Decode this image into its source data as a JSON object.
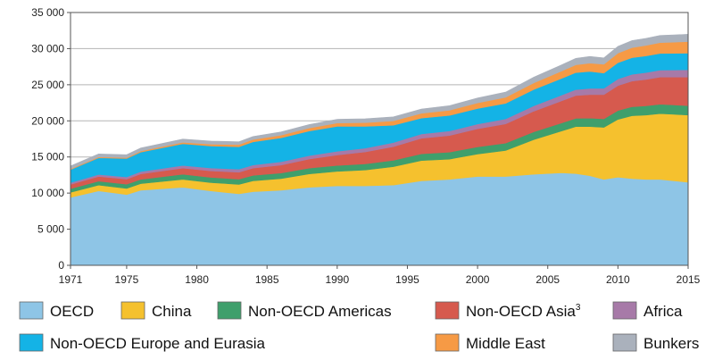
{
  "chart_data": {
    "type": "area",
    "stacked": true,
    "title": "",
    "xlabel": "",
    "ylabel": "",
    "ylim": [
      0,
      35000
    ],
    "yticks": [
      0,
      5000,
      10000,
      15000,
      20000,
      25000,
      30000,
      35000
    ],
    "ytick_labels": [
      "0",
      "5 000",
      "10 000",
      "15 000",
      "20 000",
      "25 000",
      "30 000",
      "35 000"
    ],
    "xlim": [
      1971,
      2015
    ],
    "xticks": [
      1971,
      1975,
      1980,
      1985,
      1990,
      1995,
      2000,
      2005,
      2010,
      2015
    ],
    "xtick_labels": [
      "1971",
      "1975",
      "1980",
      "1985",
      "1990",
      "1995",
      "2000",
      "2005",
      "2010",
      "2015"
    ],
    "grid": "horizontal",
    "legend_position": "bottom",
    "x": [
      1971,
      1973,
      1975,
      1976,
      1979,
      1981,
      1983,
      1984,
      1986,
      1988,
      1990,
      1992,
      1994,
      1996,
      1998,
      2000,
      2002,
      2004,
      2006,
      2007,
      2008,
      2009,
      2010,
      2011,
      2012,
      2013,
      2014,
      2015
    ],
    "series": [
      {
        "name": "OECD",
        "color": "#8ec5e6",
        "values": [
          9400,
          10300,
          9800,
          10400,
          10800,
          10300,
          9900,
          10200,
          10400,
          10800,
          11000,
          11000,
          11100,
          11700,
          11900,
          12300,
          12300,
          12600,
          12800,
          12700,
          12400,
          11900,
          12200,
          12000,
          11900,
          11900,
          11700,
          11500
        ]
      },
      {
        "name": "China",
        "color": "#f5c12e",
        "values": [
          700,
          800,
          850,
          900,
          1100,
          1150,
          1300,
          1500,
          1600,
          1850,
          2000,
          2200,
          2550,
          2800,
          2800,
          3100,
          3600,
          4800,
          5800,
          6500,
          6800,
          7200,
          8000,
          8700,
          8900,
          9100,
          9200,
          9300
        ]
      },
      {
        "name": "Non-OECD Americas",
        "color": "#3f9f6c",
        "values": [
          500,
          550,
          580,
          600,
          700,
          720,
          730,
          750,
          780,
          800,
          820,
          840,
          880,
          930,
          970,
          1000,
          1020,
          1080,
          1120,
          1150,
          1180,
          1180,
          1230,
          1250,
          1280,
          1300,
          1300,
          1300
        ]
      },
      {
        "name": "Non-OECD Asia",
        "sup": "3",
        "color": "#d65a4e",
        "values": [
          600,
          650,
          700,
          750,
          850,
          900,
          950,
          1000,
          1100,
          1250,
          1450,
          1650,
          1900,
          2150,
          2300,
          2500,
          2650,
          2850,
          3050,
          3150,
          3250,
          3350,
          3450,
          3550,
          3650,
          3750,
          3850,
          3950
        ]
      },
      {
        "name": "Africa",
        "color": "#a77aa8",
        "values": [
          250,
          280,
          300,
          320,
          380,
          400,
          430,
          440,
          460,
          490,
          520,
          540,
          560,
          600,
          630,
          660,
          700,
          750,
          810,
          830,
          860,
          880,
          920,
          940,
          960,
          980,
          1000,
          1020
        ]
      },
      {
        "name": "Non-OECD Europe and Eurasia",
        "color": "#14b3e6",
        "values": [
          1800,
          2300,
          2550,
          2700,
          3000,
          3050,
          3100,
          3200,
          3300,
          3400,
          3450,
          3000,
          2400,
          2200,
          2150,
          2150,
          2150,
          2250,
          2300,
          2350,
          2350,
          2100,
          2250,
          2300,
          2300,
          2300,
          2300,
          2300
        ]
      },
      {
        "name": "Middle East",
        "color": "#f69a45",
        "values": [
          100,
          120,
          130,
          150,
          200,
          250,
          300,
          330,
          380,
          420,
          460,
          520,
          600,
          660,
          720,
          780,
          840,
          920,
          1020,
          1080,
          1150,
          1230,
          1320,
          1400,
          1460,
          1500,
          1550,
          1600
        ]
      },
      {
        "name": "Bunkers",
        "color": "#aab1bc",
        "values": [
          400,
          420,
          400,
          420,
          450,
          430,
          400,
          420,
          450,
          480,
          520,
          540,
          560,
          600,
          630,
          680,
          720,
          800,
          860,
          900,
          930,
          880,
          950,
          980,
          980,
          1000,
          1000,
          1020
        ]
      }
    ],
    "legend_rows": [
      [
        "OECD",
        "China",
        "Non-OECD Americas",
        "Non-OECD Asia",
        "Africa"
      ],
      [
        "Non-OECD Europe and Eurasia",
        "Middle East",
        "Bunkers"
      ]
    ]
  }
}
